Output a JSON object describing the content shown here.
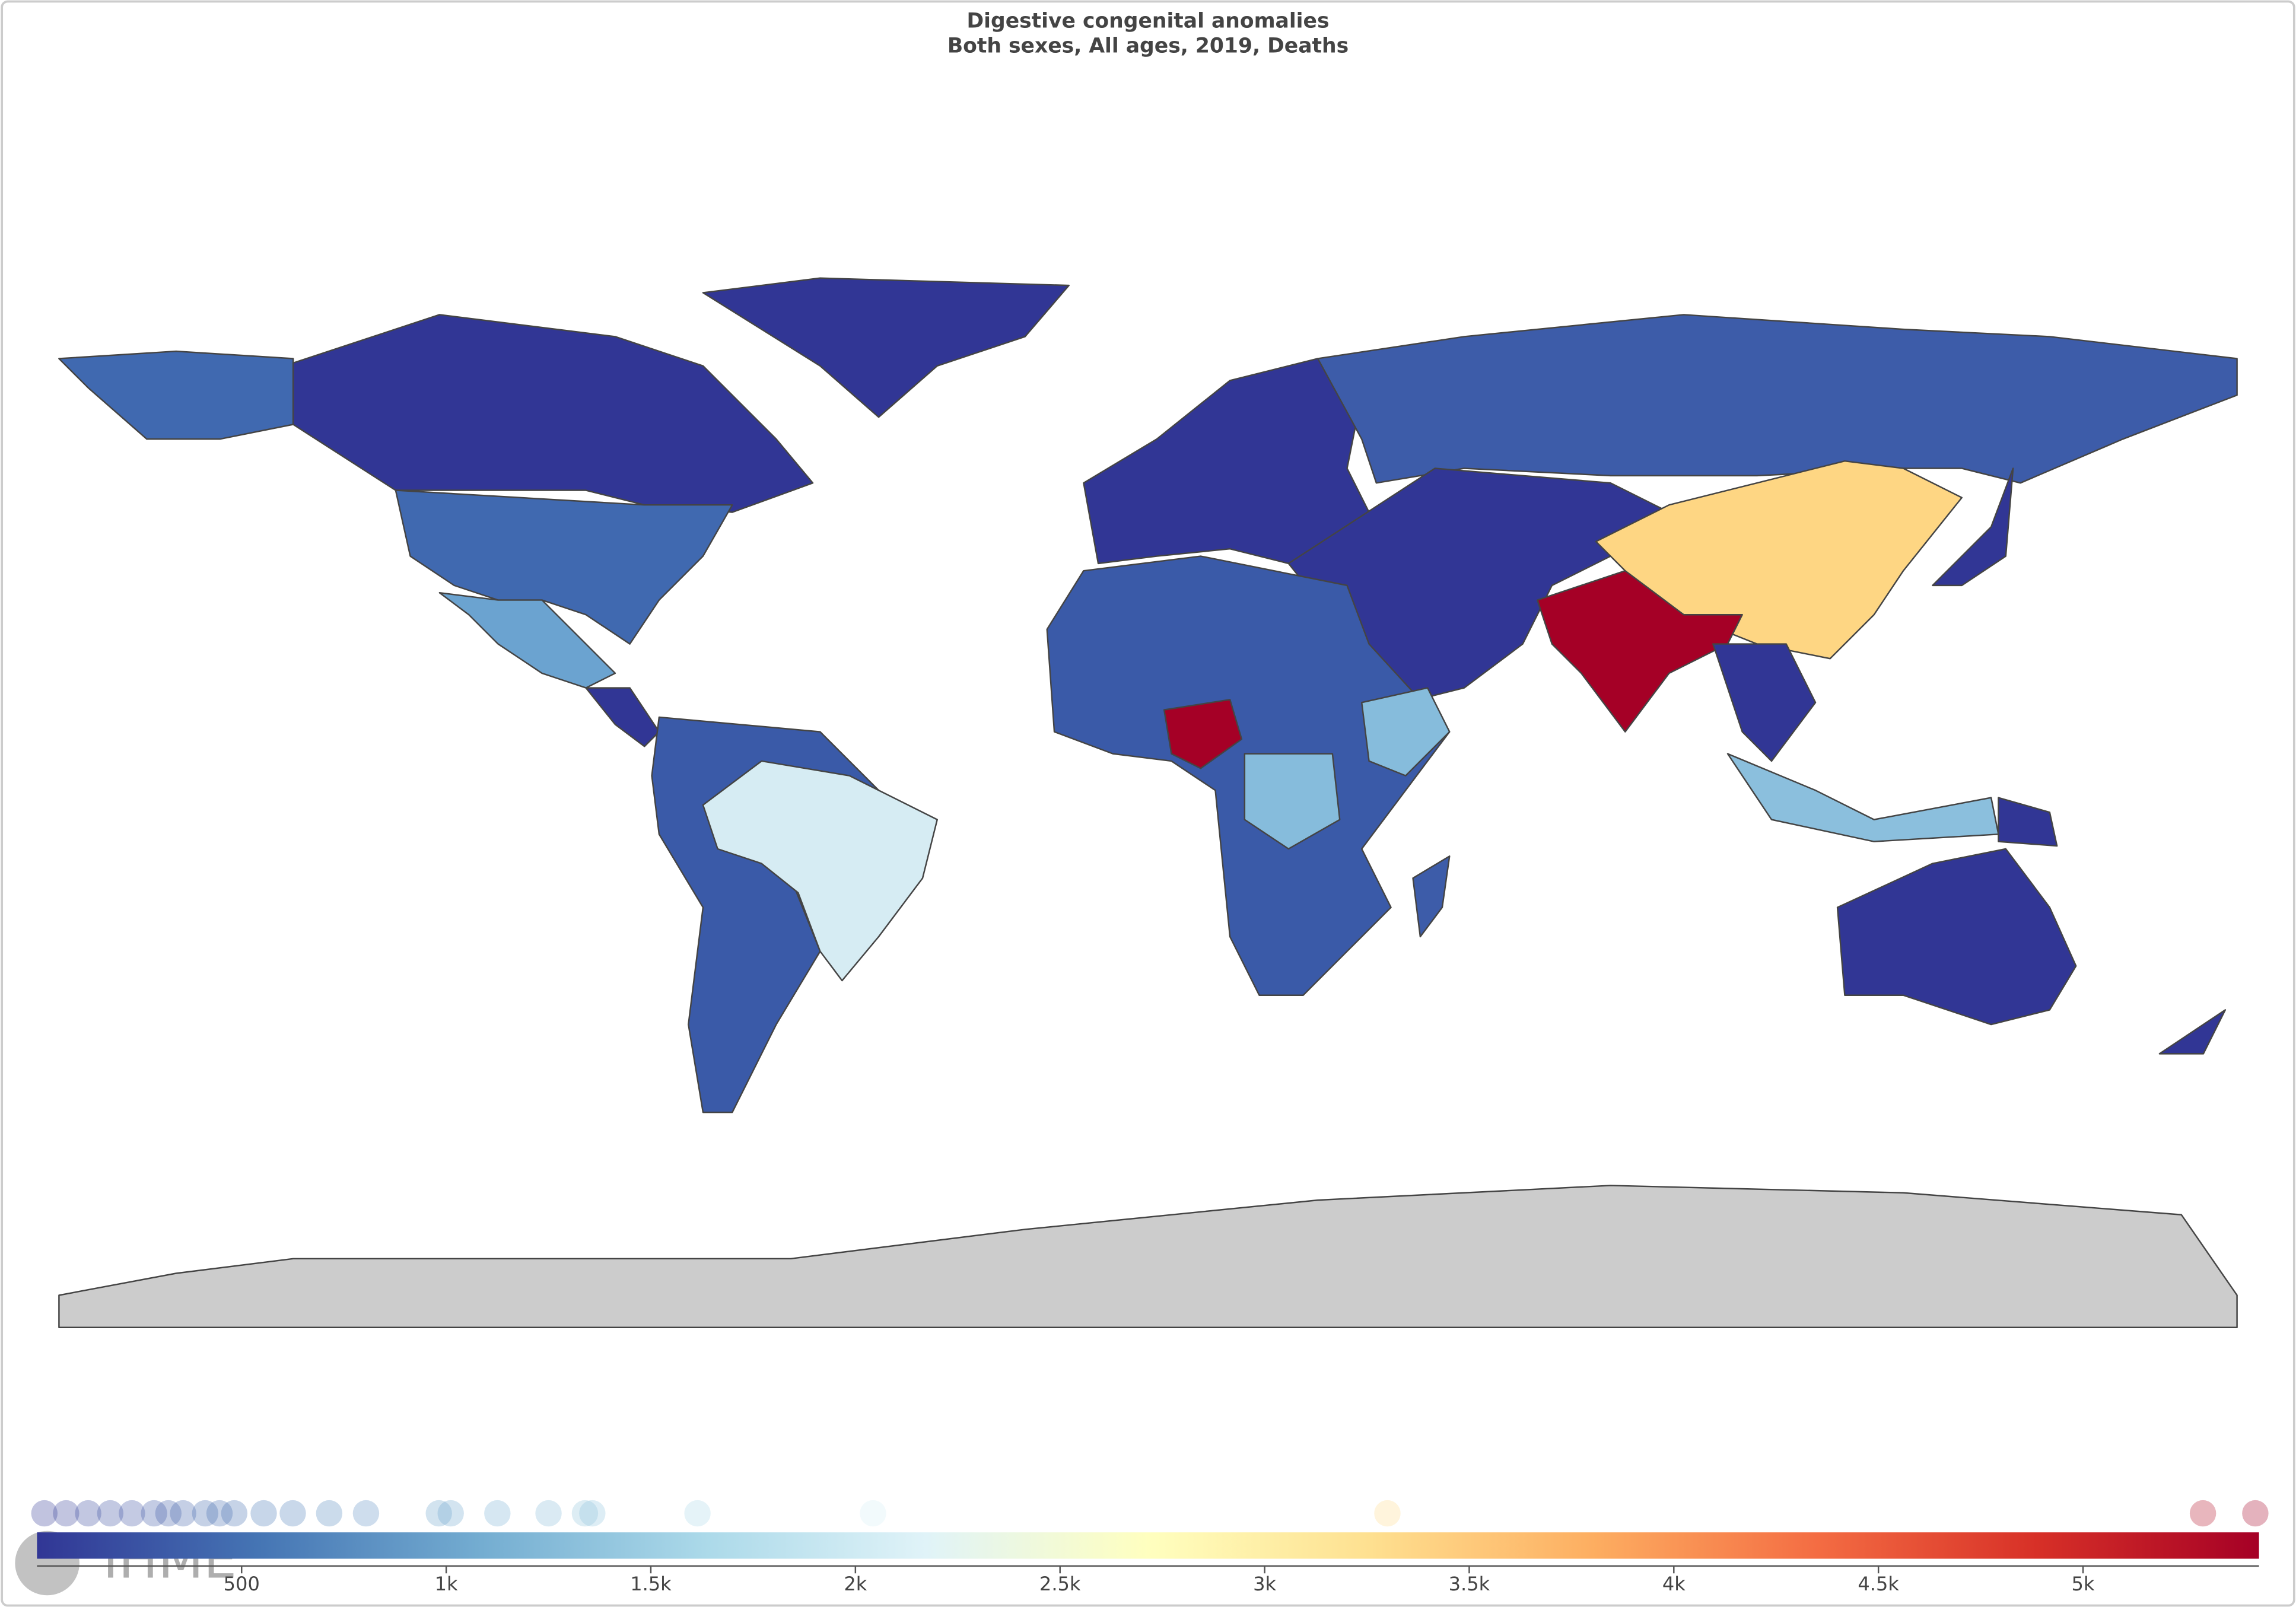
{
  "chart_data": {
    "type": "colorbar",
    "title": "Digestive congenital anomalies",
    "subtitle": "Both sexes, All ages, 2019, Deaths",
    "logo": "IHME",
    "xlim": [
      0,
      5430
    ],
    "xticks": [
      500,
      {
        "value": 1000,
        "label": "1k"
      },
      {
        "value": 1500,
        "label": "1.5k"
      },
      {
        "value": 2000,
        "label": "2k"
      },
      {
        "value": 2500,
        "label": "2.5k"
      },
      {
        "value": 3000,
        "label": "3k"
      },
      {
        "value": 3500,
        "label": "3.5k"
      },
      {
        "value": 4000,
        "label": "4k"
      },
      {
        "value": 4500,
        "label": "4.5k"
      },
      {
        "value": 5000,
        "label": "5k"
      }
    ],
    "values": [
      18,
      71,
      125,
      179,
      232,
      286,
      321,
      357,
      411,
      446,
      482,
      554,
      625,
      714,
      804,
      982,
      1011,
      1125,
      1250,
      1339,
      1357,
      1614,
      2043,
      3300,
      5293,
      5421
    ],
    "colorscale": [
      "#313695",
      "#4575b4",
      "#74add1",
      "#abd9e9",
      "#e0f3f8",
      "#ffffbf",
      "#fee090",
      "#fdae61",
      "#f46d43",
      "#d73027",
      "#a50026"
    ]
  }
}
